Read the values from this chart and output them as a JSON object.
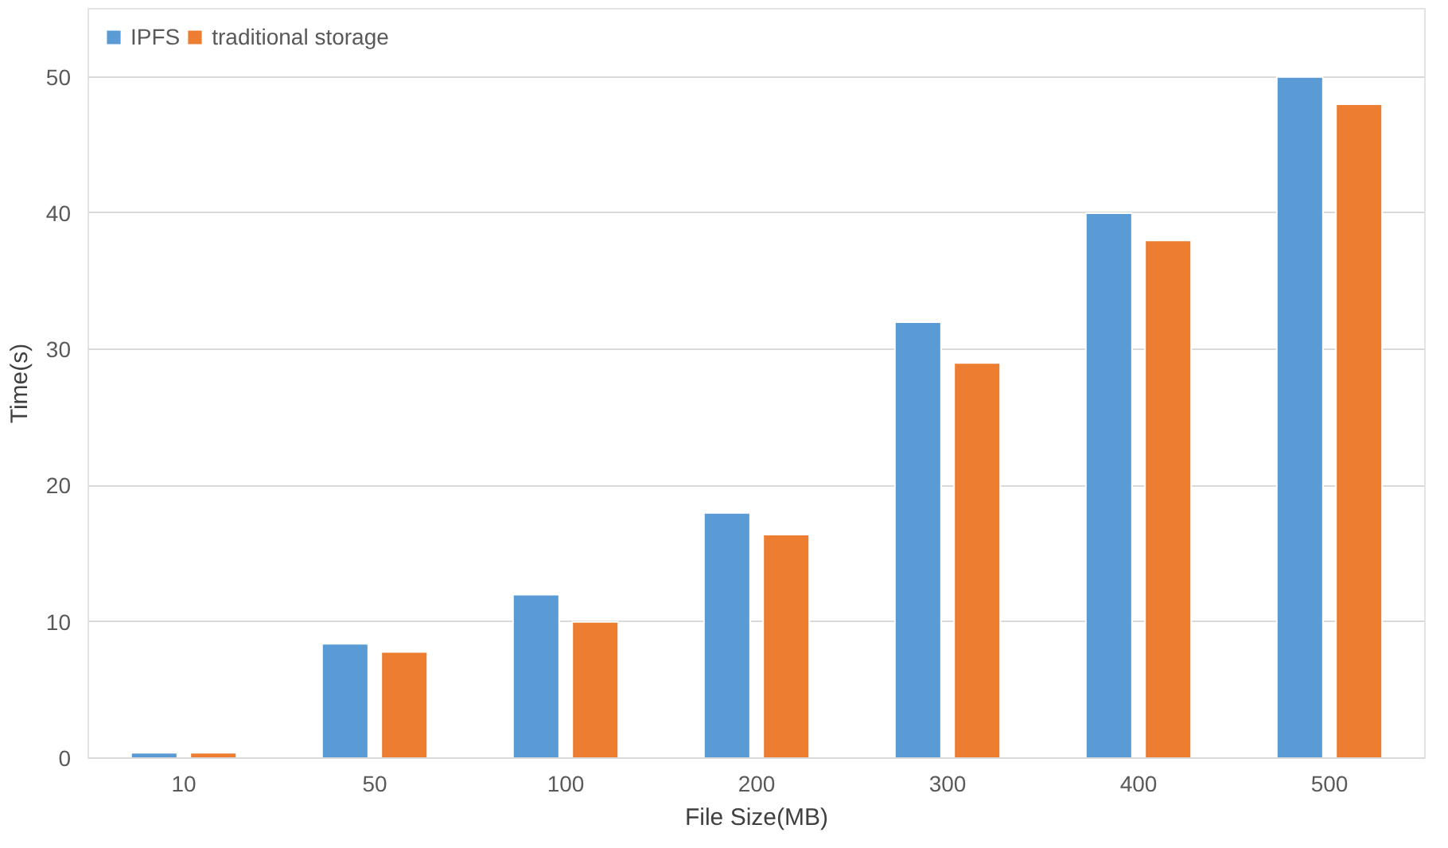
{
  "chart_data": {
    "type": "bar",
    "xlabel": "File Size(MB)",
    "ylabel": "Time(s)",
    "categories": [
      "10",
      "50",
      "100",
      "200",
      "300",
      "400",
      "500"
    ],
    "series": [
      {
        "name": "IPFS",
        "color": "#5b9bd5",
        "values": [
          0.4,
          8.4,
          12,
          18,
          32,
          40,
          50
        ]
      },
      {
        "name": "traditional storage",
        "color": "#ed7d31",
        "values": [
          0.4,
          7.8,
          10,
          16.4,
          29,
          38,
          48
        ]
      }
    ],
    "ylim": [
      0,
      55
    ],
    "yticks": [
      0,
      10,
      20,
      30,
      40,
      50
    ],
    "grid": "y",
    "legend": "top left"
  }
}
